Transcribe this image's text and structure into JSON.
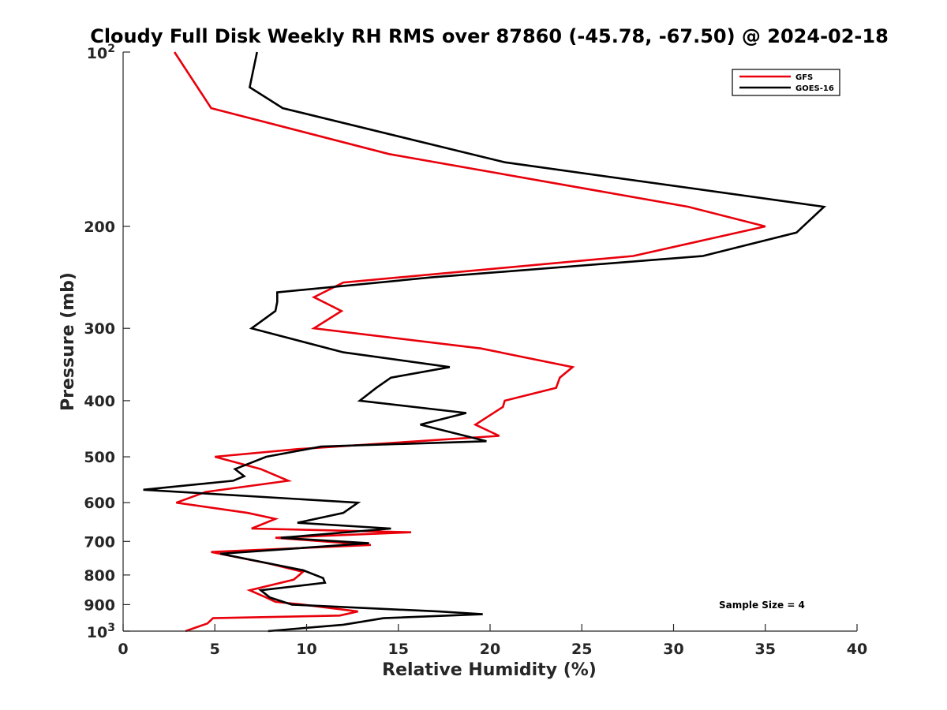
{
  "chart_data": {
    "type": "line",
    "title": "Cloudy Full Disk Weekly RH RMS over 87860 (-45.78, -67.50) @ 2024-02-18",
    "xlabel": "Relative Humidity (%)",
    "ylabel": "Pressure (mb)",
    "xlim": [
      0,
      40
    ],
    "ylim": [
      100,
      1000
    ],
    "y_scale": "log",
    "y_reversed": true,
    "x_ticks": [
      0,
      5,
      10,
      15,
      20,
      25,
      30,
      35,
      40
    ],
    "y_ticks": [
      {
        "value": 200,
        "label": "200"
      },
      {
        "value": 300,
        "label": "300"
      },
      {
        "value": 400,
        "label": "400"
      },
      {
        "value": 500,
        "label": "500"
      },
      {
        "value": 600,
        "label": "600"
      },
      {
        "value": 700,
        "label": "700"
      },
      {
        "value": 800,
        "label": "800"
      },
      {
        "value": 900,
        "label": "900"
      }
    ],
    "y_end_labels": {
      "top": {
        "value": 100,
        "base": "10",
        "exp": "2"
      },
      "bottom": {
        "value": 1000,
        "base": "10",
        "exp": "3"
      }
    },
    "grid": false,
    "legend_position": "top-right",
    "series": [
      {
        "name": "GFS",
        "color": "#e8000b",
        "points": [
          [
            2.8,
            100
          ],
          [
            4.8,
            125
          ],
          [
            14.5,
            150
          ],
          [
            30.8,
            185
          ],
          [
            35.0,
            200
          ],
          [
            27.8,
            225
          ],
          [
            12.0,
            250
          ],
          [
            10.4,
            265
          ],
          [
            11.9,
            280
          ],
          [
            10.4,
            300
          ],
          [
            19.5,
            325
          ],
          [
            24.5,
            350
          ],
          [
            23.8,
            365
          ],
          [
            23.6,
            380
          ],
          [
            20.8,
            400
          ],
          [
            20.7,
            410
          ],
          [
            19.2,
            440
          ],
          [
            20.5,
            460
          ],
          [
            9.5,
            485
          ],
          [
            5.0,
            500
          ],
          [
            7.5,
            525
          ],
          [
            9.0,
            550
          ],
          [
            4.5,
            575
          ],
          [
            2.9,
            600
          ],
          [
            6.8,
            625
          ],
          [
            8.3,
            640
          ],
          [
            7.0,
            665
          ],
          [
            15.7,
            675
          ],
          [
            8.3,
            690
          ],
          [
            13.5,
            710
          ],
          [
            4.8,
            730
          ],
          [
            8.0,
            765
          ],
          [
            9.8,
            790
          ],
          [
            9.3,
            815
          ],
          [
            6.9,
            850
          ],
          [
            7.8,
            875
          ],
          [
            8.3,
            890
          ],
          [
            9.8,
            900
          ],
          [
            12.8,
            925
          ],
          [
            11.8,
            940
          ],
          [
            4.9,
            950
          ],
          [
            4.6,
            970
          ],
          [
            3.4,
            1000
          ]
        ]
      },
      {
        "name": "GOES-16",
        "color": "#000000",
        "points": [
          [
            7.3,
            100
          ],
          [
            6.9,
            115
          ],
          [
            8.7,
            125
          ],
          [
            20.8,
            155
          ],
          [
            38.2,
            185
          ],
          [
            36.7,
            205
          ],
          [
            31.6,
            225
          ],
          [
            16.8,
            245
          ],
          [
            8.4,
            260
          ],
          [
            8.4,
            270
          ],
          [
            8.3,
            280
          ],
          [
            7.0,
            300
          ],
          [
            12.0,
            330
          ],
          [
            17.8,
            350
          ],
          [
            14.6,
            365
          ],
          [
            13.8,
            380
          ],
          [
            12.9,
            400
          ],
          [
            18.7,
            420
          ],
          [
            16.2,
            440
          ],
          [
            19.8,
            470
          ],
          [
            10.8,
            480
          ],
          [
            7.8,
            500
          ],
          [
            6.1,
            525
          ],
          [
            6.6,
            540
          ],
          [
            6.0,
            550
          ],
          [
            1.1,
            570
          ],
          [
            12.8,
            600
          ],
          [
            12.0,
            625
          ],
          [
            9.5,
            650
          ],
          [
            14.6,
            665
          ],
          [
            8.6,
            690
          ],
          [
            13.4,
            705
          ],
          [
            5.3,
            735
          ],
          [
            9.8,
            785
          ],
          [
            10.9,
            810
          ],
          [
            11.0,
            825
          ],
          [
            7.5,
            850
          ],
          [
            8.0,
            875
          ],
          [
            9.2,
            900
          ],
          [
            17.2,
            925
          ],
          [
            19.6,
            935
          ],
          [
            14.2,
            950
          ],
          [
            12.0,
            975
          ],
          [
            7.9,
            1000
          ]
        ]
      }
    ],
    "annotation": "Sample Size = 4"
  }
}
